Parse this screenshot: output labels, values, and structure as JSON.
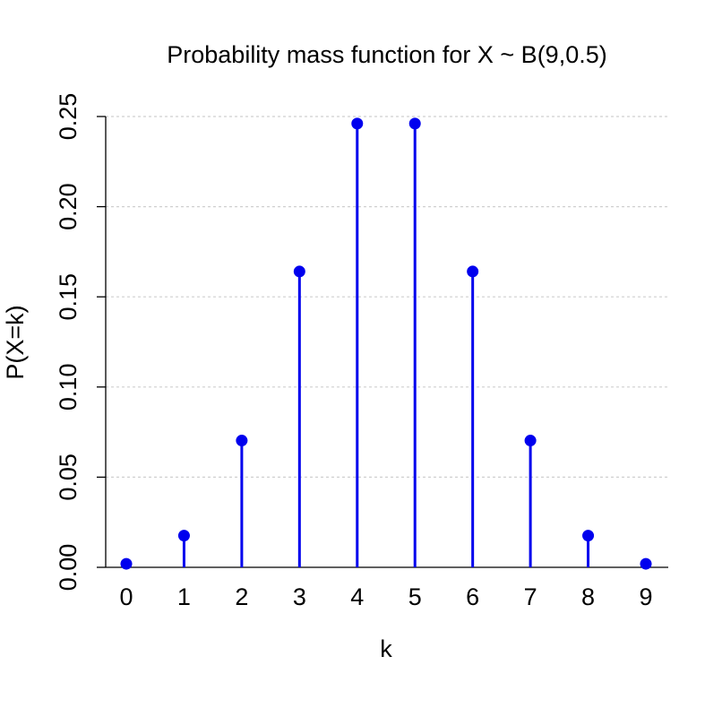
{
  "chart_data": {
    "type": "lollipop",
    "title": "Probability mass function for X ~ B(9,0.5)",
    "xlabel": "k",
    "ylabel": "P(X=k)",
    "x": [
      0,
      1,
      2,
      3,
      4,
      5,
      6,
      7,
      8,
      9
    ],
    "values": [
      0.00195,
      0.01758,
      0.07031,
      0.16406,
      0.24609,
      0.24609,
      0.16406,
      0.07031,
      0.01758,
      0.00195
    ],
    "xticks": [
      "0",
      "1",
      "2",
      "3",
      "4",
      "5",
      "6",
      "7",
      "8",
      "9"
    ],
    "yticks": [
      "0.00",
      "0.05",
      "0.10",
      "0.15",
      "0.20",
      "0.25"
    ],
    "ylim": [
      0,
      0.25
    ],
    "xlim": [
      0,
      9
    ],
    "grid": "horizontal dotted",
    "color": "#0000ee"
  }
}
